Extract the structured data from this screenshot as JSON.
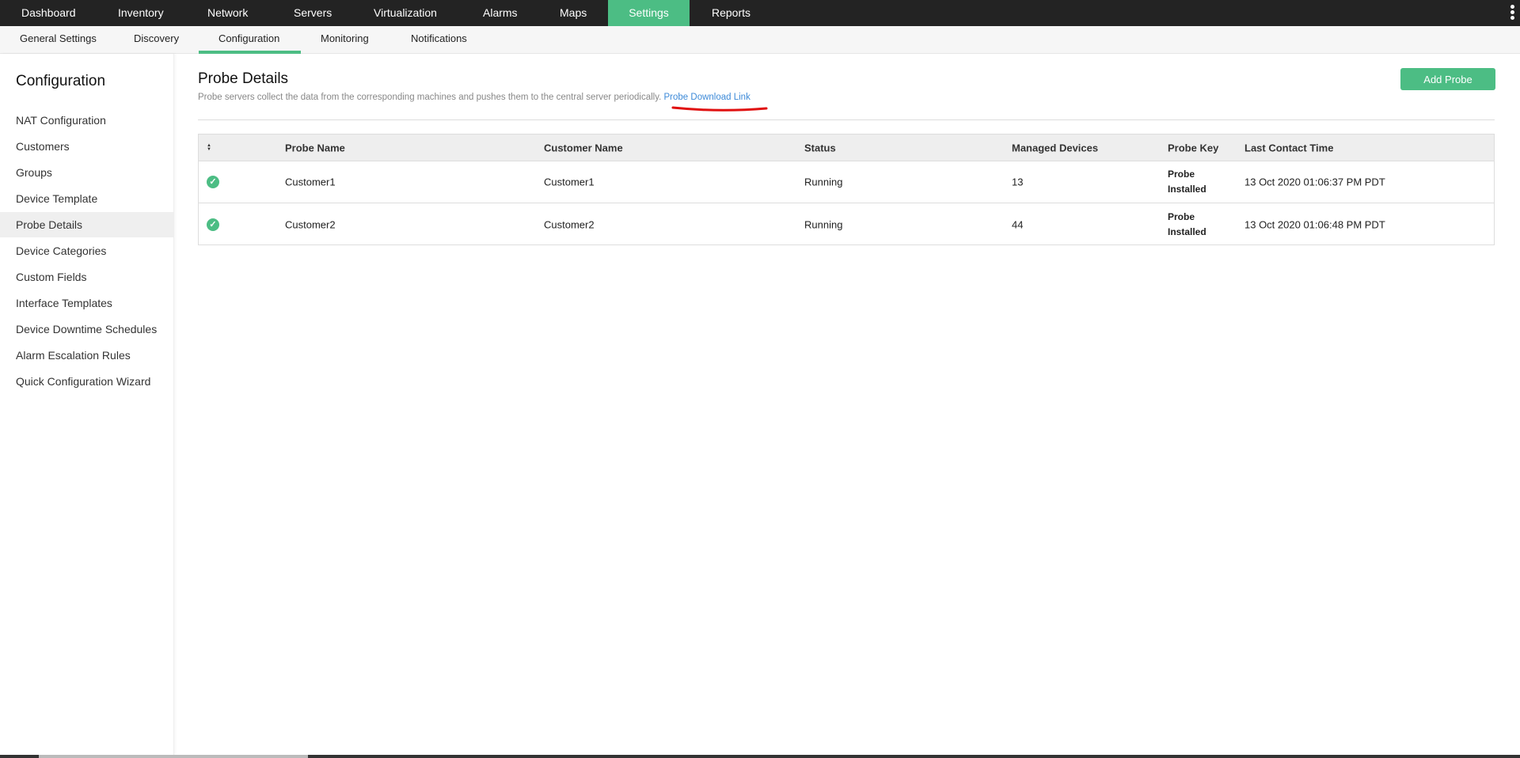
{
  "top_nav": {
    "items": [
      "Dashboard",
      "Inventory",
      "Network",
      "Servers",
      "Virtualization",
      "Alarms",
      "Maps",
      "Settings",
      "Reports"
    ],
    "active": "Settings"
  },
  "sub_nav": {
    "items": [
      "General Settings",
      "Discovery",
      "Configuration",
      "Monitoring",
      "Notifications"
    ],
    "active": "Configuration"
  },
  "sidebar": {
    "title": "Configuration",
    "items": [
      "NAT Configuration",
      "Customers",
      "Groups",
      "Device Template",
      "Probe Details",
      "Device Categories",
      "Custom Fields",
      "Interface Templates",
      "Device Downtime Schedules",
      "Alarm Escalation Rules",
      "Quick Configuration Wizard"
    ],
    "selected": "Probe Details"
  },
  "main": {
    "title": "Probe Details",
    "description": "Probe servers collect the data from the corresponding machines and pushes them to the central server periodically.",
    "download_link": "Probe Download Link",
    "add_button": "Add Probe"
  },
  "table": {
    "columns": [
      "Probe Name",
      "Customer Name",
      "Status",
      "Managed Devices",
      "Probe Key",
      "Last Contact Time"
    ],
    "rows": [
      {
        "status_icon": "check-circle-icon",
        "probe_name": "Customer1",
        "customer_name": "Customer1",
        "status": "Running",
        "managed_devices": "13",
        "probe_key": "Probe Installed",
        "last_contact": "13 Oct 2020 01:06:37 PM PDT"
      },
      {
        "status_icon": "check-circle-icon",
        "probe_name": "Customer2",
        "customer_name": "Customer2",
        "status": "Running",
        "managed_devices": "44",
        "probe_key": "Probe Installed",
        "last_contact": "13 Oct 2020 01:06:48 PM PDT"
      }
    ]
  },
  "colors": {
    "accent": "#4cbd84",
    "nav_bg": "#232323",
    "link": "#3d8ad8",
    "annotation": "#e01010"
  }
}
